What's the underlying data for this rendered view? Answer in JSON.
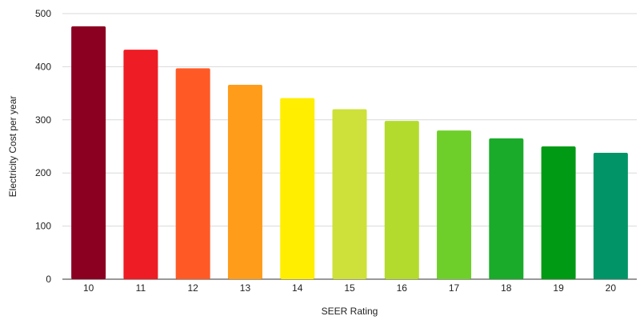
{
  "chart_data": {
    "type": "bar",
    "title": "",
    "xlabel": "SEER Rating",
    "ylabel": "Electricity Cost per year",
    "categories": [
      "10",
      "11",
      "12",
      "13",
      "14",
      "15",
      "16",
      "17",
      "18",
      "19",
      "20"
    ],
    "values": [
      476,
      432,
      397,
      366,
      341,
      320,
      298,
      280,
      265,
      250,
      238
    ],
    "colors": [
      "#8b0021",
      "#ee1c25",
      "#ff5a26",
      "#ff9c1a",
      "#ffee00",
      "#cde13a",
      "#b3db2d",
      "#6fcf2a",
      "#1aab2a",
      "#009a14",
      "#009467"
    ],
    "ylim": [
      0,
      500
    ],
    "yticks": [
      0,
      100,
      200,
      300,
      400,
      500
    ],
    "grid": true,
    "legend": "none"
  }
}
